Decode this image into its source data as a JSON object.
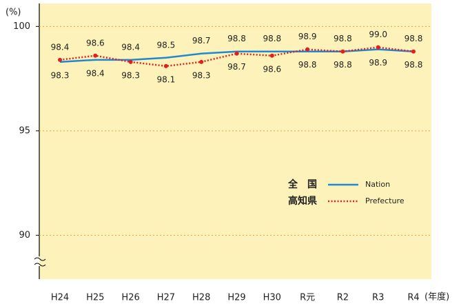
{
  "chart_data": {
    "type": "line",
    "y_unit": "(%)",
    "x_unit": "(年度)",
    "categories": [
      "H24",
      "H25",
      "H26",
      "H27",
      "H28",
      "H29",
      "H30",
      "R元",
      "R2",
      "R3",
      "R4"
    ],
    "series": [
      {
        "name": "全　国",
        "name_en": "Nation",
        "color": "#1e88d0",
        "style": "solid",
        "values": [
          98.3,
          98.4,
          98.4,
          98.5,
          98.7,
          98.8,
          98.8,
          98.8,
          98.8,
          98.9,
          98.8
        ]
      },
      {
        "name": "高知県",
        "name_en": "Prefecture",
        "color": "#e02020",
        "style": "dotted",
        "values": [
          98.4,
          98.6,
          98.3,
          98.1,
          98.3,
          98.7,
          98.6,
          98.9,
          98.8,
          99.0,
          98.8
        ],
        "value_labels": [
          "98.4",
          "98.6",
          "98.3",
          "98.1",
          "98.3",
          "98.7",
          "98.6",
          "98.9",
          "98.8",
          "99.0",
          "98.8"
        ]
      }
    ],
    "ylim": [
      87.9,
      101.1
    ],
    "yticks": [
      90,
      95,
      100
    ],
    "grid": true
  }
}
